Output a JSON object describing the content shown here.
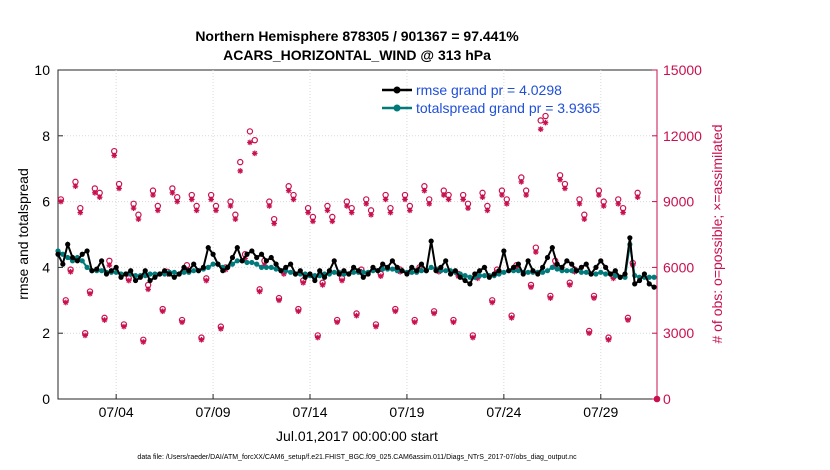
{
  "chart_data": {
    "type": "line",
    "title": "Northern Hemisphere 878305 / 901367 = 97.441%",
    "subtitle": "ACARS_HORIZONTAL_WIND @ 313 hPa",
    "xlabel": "Jul.01,2017 00:00:00 start",
    "ylabel": "rmse and totalspread",
    "y2label": "# of obs: o=possible; ×=assimilated",
    "footer": "data file: /Users/raeder/DAI/ATM_forcXX/CAM6_setup/f.e21.FHIST_BGC.f09_025.CAM6assim.011/Diags_NTrS_2017-07/obs_diag_output.nc",
    "xlim": [
      1.0,
      31.9
    ],
    "ylim": [
      0,
      10
    ],
    "y2lim": [
      0,
      15000
    ],
    "xticks": [
      {
        "x": 4,
        "label": "07/04"
      },
      {
        "x": 9,
        "label": "07/09"
      },
      {
        "x": 14,
        "label": "07/14"
      },
      {
        "x": 19,
        "label": "07/19"
      },
      {
        "x": 24,
        "label": "07/24"
      },
      {
        "x": 29,
        "label": "07/29"
      }
    ],
    "yticks": [
      {
        "v": 0,
        "label": "0"
      },
      {
        "v": 2,
        "label": "2"
      },
      {
        "v": 4,
        "label": "4"
      },
      {
        "v": 6,
        "label": "6"
      },
      {
        "v": 8,
        "label": "8"
      },
      {
        "v": 10,
        "label": "10"
      }
    ],
    "y2ticks": [
      {
        "v": 0,
        "label": "0"
      },
      {
        "v": 3000,
        "label": "3000"
      },
      {
        "v": 6000,
        "label": "6000"
      },
      {
        "v": 9000,
        "label": "9000"
      },
      {
        "v": 12000,
        "label": "12000"
      },
      {
        "v": 15000,
        "label": "15000"
      }
    ],
    "legend": [
      {
        "label": "rmse grand pr = 4.0298",
        "color": "#000000"
      },
      {
        "label": "totalspread grand pr = 3.9365",
        "color": "#007a7a"
      }
    ],
    "colors": {
      "rmse": "#000000",
      "spread": "#007a7a",
      "obs": "#c8104f"
    },
    "x": [
      1.0,
      1.25,
      1.5,
      1.75,
      2.0,
      2.25,
      2.5,
      2.75,
      3.0,
      3.25,
      3.5,
      3.75,
      4.0,
      4.25,
      4.5,
      4.75,
      5.0,
      5.25,
      5.5,
      5.75,
      6.0,
      6.25,
      6.5,
      6.75,
      7.0,
      7.25,
      7.5,
      7.75,
      8.0,
      8.25,
      8.5,
      8.75,
      9.0,
      9.25,
      9.5,
      9.75,
      10.0,
      10.25,
      10.5,
      10.75,
      11.0,
      11.25,
      11.5,
      11.75,
      12.0,
      12.25,
      12.5,
      12.75,
      13.0,
      13.25,
      13.5,
      13.75,
      14.0,
      14.25,
      14.5,
      14.75,
      15.0,
      15.25,
      15.5,
      15.75,
      16.0,
      16.25,
      16.5,
      16.75,
      17.0,
      17.25,
      17.5,
      17.75,
      18.0,
      18.25,
      18.5,
      18.75,
      19.0,
      19.25,
      19.5,
      19.75,
      20.0,
      20.25,
      20.5,
      20.75,
      21.0,
      21.25,
      21.5,
      21.75,
      22.0,
      22.25,
      22.5,
      22.75,
      23.0,
      23.25,
      23.5,
      23.75,
      24.0,
      24.25,
      24.5,
      24.75,
      25.0,
      25.25,
      25.5,
      25.75,
      26.0,
      26.25,
      26.5,
      26.75,
      27.0,
      27.25,
      27.5,
      27.75,
      28.0,
      28.25,
      28.5,
      28.75,
      29.0,
      29.25,
      29.5,
      29.75,
      30.0,
      30.25,
      30.5,
      30.75,
      31.0,
      31.25,
      31.5,
      31.75
    ],
    "series": [
      {
        "name": "rmse",
        "values": [
          4.4,
          4.1,
          4.7,
          4.3,
          4.2,
          4.4,
          4.5,
          3.9,
          3.95,
          4.2,
          3.8,
          3.9,
          4.0,
          3.7,
          3.8,
          3.9,
          3.6,
          3.7,
          3.9,
          3.6,
          3.7,
          3.8,
          3.9,
          3.8,
          3.7,
          3.8,
          4.0,
          3.9,
          4.1,
          3.9,
          4.0,
          4.6,
          4.4,
          4.1,
          3.9,
          4.0,
          4.3,
          4.6,
          4.2,
          4.4,
          4.5,
          4.3,
          4.4,
          4.2,
          4.3,
          4.1,
          3.9,
          4.0,
          4.1,
          3.8,
          3.9,
          3.7,
          3.8,
          3.6,
          3.9,
          3.7,
          3.9,
          4.2,
          3.8,
          3.9,
          3.8,
          4.0,
          3.9,
          3.7,
          3.8,
          4.0,
          3.9,
          4.1,
          4.0,
          4.2,
          4.0,
          3.9,
          3.8,
          4.0,
          3.9,
          4.1,
          3.9,
          4.8,
          3.9,
          4.0,
          4.2,
          3.8,
          3.9,
          3.7,
          3.6,
          3.5,
          3.8,
          3.9,
          4.0,
          3.7,
          3.8,
          3.9,
          4.5,
          3.9,
          4.0,
          4.1,
          3.8,
          4.2,
          3.9,
          3.8,
          4.0,
          4.3,
          4.6,
          4.1,
          4.0,
          4.2,
          4.1,
          3.9,
          4.0,
          4.1,
          3.8,
          4.0,
          4.2,
          4.0,
          3.8,
          3.9,
          3.7,
          3.8,
          4.9,
          3.5,
          3.6,
          3.8,
          3.5,
          3.4
        ]
      },
      {
        "name": "totalspread",
        "values": [
          4.5,
          4.4,
          4.3,
          4.2,
          4.3,
          4.2,
          4.0,
          3.9,
          3.9,
          3.9,
          3.85,
          3.85,
          3.85,
          3.8,
          3.8,
          3.8,
          3.75,
          3.75,
          3.75,
          3.8,
          3.8,
          3.8,
          3.8,
          3.85,
          3.85,
          3.8,
          3.85,
          3.85,
          3.9,
          3.9,
          3.95,
          4.0,
          4.1,
          4.1,
          4.0,
          4.0,
          4.1,
          4.2,
          4.2,
          4.15,
          4.15,
          4.1,
          4.0,
          4.0,
          4.0,
          3.95,
          3.9,
          3.9,
          3.85,
          3.8,
          3.8,
          3.8,
          3.75,
          3.75,
          3.75,
          3.8,
          3.8,
          3.85,
          3.85,
          3.8,
          3.8,
          3.85,
          3.85,
          3.85,
          3.85,
          3.9,
          3.9,
          3.95,
          3.95,
          3.95,
          3.9,
          3.9,
          3.85,
          3.85,
          3.85,
          3.9,
          3.9,
          4.0,
          3.95,
          3.9,
          3.9,
          3.9,
          3.85,
          3.8,
          3.75,
          3.7,
          3.7,
          3.75,
          3.75,
          3.75,
          3.75,
          3.8,
          3.85,
          3.9,
          3.9,
          3.9,
          3.85,
          3.85,
          3.85,
          3.85,
          3.85,
          3.9,
          4.0,
          3.95,
          3.9,
          3.9,
          3.9,
          3.9,
          3.85,
          3.85,
          3.8,
          3.8,
          3.85,
          3.8,
          3.8,
          3.75,
          3.7,
          3.7,
          4.7,
          3.75,
          3.7,
          3.7,
          3.7,
          3.7
        ]
      }
    ],
    "obs_x": [
      1.15,
      1.4,
      1.65,
      1.9,
      2.15,
      2.4,
      2.65,
      2.9,
      3.15,
      3.4,
      3.65,
      3.9,
      4.15,
      4.4,
      4.65,
      4.9,
      5.15,
      5.4,
      5.65,
      5.9,
      6.15,
      6.4,
      6.65,
      6.9,
      7.15,
      7.4,
      7.65,
      7.9,
      8.15,
      8.4,
      8.65,
      8.9,
      9.15,
      9.4,
      9.65,
      9.9,
      10.15,
      10.4,
      10.65,
      10.9,
      11.15,
      11.4,
      11.65,
      11.9,
      12.15,
      12.4,
      12.65,
      12.9,
      13.15,
      13.4,
      13.65,
      13.9,
      14.15,
      14.4,
      14.65,
      14.9,
      15.15,
      15.4,
      15.65,
      15.9,
      16.15,
      16.4,
      16.65,
      16.9,
      17.15,
      17.4,
      17.65,
      17.9,
      18.15,
      18.4,
      18.65,
      18.9,
      19.15,
      19.4,
      19.65,
      19.9,
      20.15,
      20.4,
      20.65,
      20.9,
      21.15,
      21.4,
      21.65,
      21.9,
      22.15,
      22.4,
      22.65,
      22.9,
      23.15,
      23.4,
      23.65,
      23.9,
      24.15,
      24.4,
      24.65,
      24.9,
      25.15,
      25.4,
      25.65,
      25.9,
      26.15,
      26.4,
      26.65,
      26.9,
      27.15,
      27.4,
      27.65,
      27.9,
      28.15,
      28.4,
      28.65,
      28.9,
      29.15,
      29.4,
      29.65,
      29.9,
      30.15,
      30.4,
      30.65,
      30.9,
      31.15,
      31.4,
      31.65,
      31.9
    ],
    "obs_possible": [
      9100,
      4500,
      5900,
      9900,
      8700,
      3000,
      4900,
      9600,
      9400,
      3700,
      6300,
      11300,
      9800,
      3400,
      5500,
      8900,
      8400,
      2700,
      5200,
      9500,
      8800,
      4100,
      5800,
      9600,
      9200,
      3600,
      6100,
      9300,
      8800,
      2800,
      5500,
      9300,
      8800,
      3300,
      6000,
      9000,
      8400,
      10800,
      6600,
      12200,
      11800,
      5000,
      6300,
      9000,
      8200,
      4600,
      5800,
      9700,
      9300,
      4100,
      5400,
      8700,
      8300,
      2900,
      5300,
      8800,
      8300,
      3600,
      5500,
      9000,
      8700,
      3900,
      5900,
      9100,
      8600,
      3400,
      5700,
      9300,
      8700,
      4100,
      5900,
      9300,
      8800,
      3600,
      6000,
      9700,
      9100,
      4000,
      5900,
      9500,
      9300,
      3600,
      5700,
      9300,
      8900,
      2900,
      5600,
      9400,
      8800,
      4500,
      5900,
      9500,
      9100,
      3800,
      6100,
      10100,
      9500,
      5200,
      6900,
      12700,
      12900,
      4700,
      6300,
      10200,
      9800,
      5300,
      5900,
      9100,
      8400,
      3100,
      4700,
      9500,
      9000,
      2800,
      5600,
      9100,
      8700,
      3700,
      6200,
      9400
    ],
    "obs_assimilated": [
      9000,
      4400,
      5800,
      9700,
      8500,
      2900,
      4800,
      9400,
      9200,
      3600,
      6100,
      11100,
      9600,
      3300,
      5400,
      8700,
      8200,
      2600,
      5000,
      9300,
      8600,
      4000,
      5700,
      9400,
      9000,
      3500,
      5900,
      9100,
      8600,
      2700,
      5400,
      9100,
      8600,
      3200,
      5900,
      8800,
      8200,
      10400,
      6400,
      11700,
      11200,
      4900,
      6100,
      8800,
      8000,
      4500,
      5700,
      9500,
      9100,
      4000,
      5300,
      8500,
      8100,
      2800,
      5200,
      8600,
      8100,
      3500,
      5400,
      8800,
      8500,
      3800,
      5800,
      8900,
      8400,
      3300,
      5600,
      9100,
      8500,
      4000,
      5800,
      9100,
      8600,
      3500,
      5900,
      9500,
      8900,
      3900,
      5800,
      9300,
      9100,
      3500,
      5600,
      9100,
      8700,
      2800,
      5500,
      9200,
      8600,
      4400,
      5800,
      9300,
      8900,
      3700,
      6000,
      9900,
      9300,
      5100,
      6700,
      12300,
      12600,
      4600,
      6100,
      10000,
      9600,
      5200,
      5800,
      8900,
      8200,
      3000,
      4600,
      9300,
      8800,
      2700,
      5500,
      8900,
      8500,
      3600,
      6100,
      9200
    ],
    "obs_last": {
      "x": 31.9,
      "v": 0
    }
  }
}
